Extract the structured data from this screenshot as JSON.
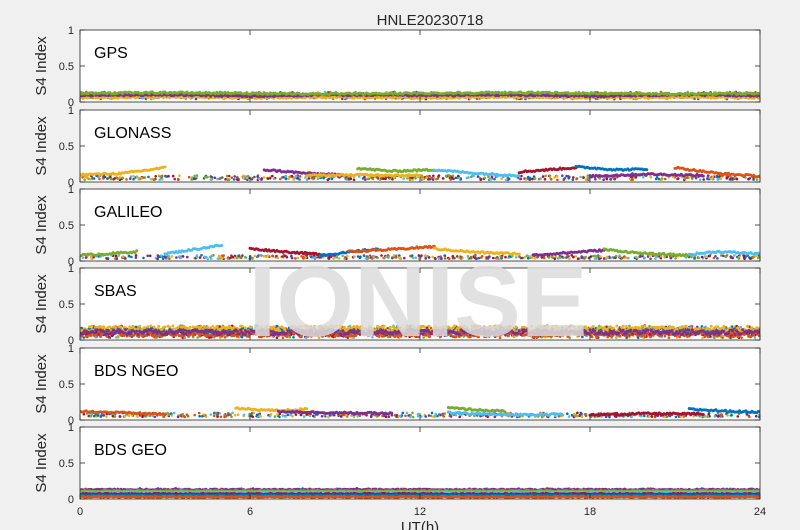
{
  "figure": {
    "title": "HNLE20230718",
    "xlabel": "UT(h)",
    "ylabel": "S4 Index",
    "watermark": "IONISE"
  },
  "colors": {
    "background": "#f0f0f0",
    "axes_bg": "#ffffff",
    "axis": "#262626",
    "watermark": "#dcdcdc",
    "series": [
      "#0072bd",
      "#d95319",
      "#edb120",
      "#7e2f8e",
      "#77ac30",
      "#4dbeee",
      "#a2142f"
    ]
  },
  "chart_data": {
    "type": "scatter",
    "title": "HNLE20230718",
    "xlabel": "UT(h)",
    "ylabel": "S4 Index",
    "xlim": [
      0,
      24
    ],
    "xticks": [
      0,
      6,
      12,
      18,
      24
    ],
    "ylim": [
      0,
      1
    ],
    "yticks": [
      0,
      0.5,
      1
    ],
    "ytick_labels": [
      "0",
      "0.5",
      "1"
    ],
    "grid": false,
    "panels": [
      {
        "label": "GPS",
        "style": "continuous",
        "level": [
          0.04,
          0.14
        ],
        "series": [
          {
            "x": [
              0,
              3,
              6,
              9,
              12,
              15,
              18,
              21,
              24
            ],
            "y": [
              0.07,
              0.08,
              0.07,
              0.08,
              0.07,
              0.08,
              0.07,
              0.08,
              0.07
            ]
          },
          {
            "x": [
              0,
              3,
              6,
              9,
              12,
              15,
              18,
              21,
              24
            ],
            "y": [
              0.1,
              0.09,
              0.11,
              0.09,
              0.1,
              0.09,
              0.11,
              0.09,
              0.1
            ]
          },
          {
            "x": [
              0,
              3,
              6,
              9,
              12,
              15,
              18,
              21,
              24
            ],
            "y": [
              0.06,
              0.07,
              0.06,
              0.07,
              0.06,
              0.07,
              0.06,
              0.07,
              0.06
            ]
          },
          {
            "x": [
              0,
              3,
              6,
              9,
              12,
              15,
              18,
              21,
              24
            ],
            "y": [
              0.09,
              0.1,
              0.08,
              0.1,
              0.09,
              0.1,
              0.08,
              0.1,
              0.09
            ]
          },
          {
            "x": [
              0,
              3,
              6,
              9,
              12,
              15,
              18,
              21,
              24
            ],
            "y": [
              0.12,
              0.13,
              0.12,
              0.11,
              0.12,
              0.13,
              0.12,
              0.11,
              0.12
            ]
          }
        ]
      },
      {
        "label": "GLONASS",
        "style": "arcs",
        "level": [
          0.03,
          0.09
        ],
        "series": [
          {
            "x": [
              0,
              1.5,
              3
            ],
            "y": [
              0.1,
              0.12,
              0.2
            ]
          },
          {
            "x": [
              6.5,
              8,
              9.5
            ],
            "y": [
              0.17,
              0.12,
              0.09
            ]
          },
          {
            "x": [
              9.8,
              11,
              12.5
            ],
            "y": [
              0.19,
              0.15,
              0.17
            ]
          },
          {
            "x": [
              12.5,
              14,
              15.5
            ],
            "y": [
              0.17,
              0.12,
              0.09
            ]
          },
          {
            "x": [
              15.5,
              16.5,
              17.5
            ],
            "y": [
              0.14,
              0.17,
              0.2
            ]
          },
          {
            "x": [
              17.5,
              19,
              20
            ],
            "y": [
              0.21,
              0.17,
              0.18
            ]
          },
          {
            "x": [
              21,
              22.5,
              24
            ],
            "y": [
              0.2,
              0.12,
              0.08
            ]
          },
          {
            "x": [
              8,
              10,
              12
            ],
            "y": [
              0.09,
              0.1,
              0.09
            ]
          },
          {
            "x": [
              18,
              20,
              22
            ],
            "y": [
              0.08,
              0.11,
              0.09
            ]
          }
        ]
      },
      {
        "label": "GALILEO",
        "style": "arcs",
        "level": [
          0.03,
          0.08
        ],
        "series": [
          {
            "x": [
              0,
              1,
              2
            ],
            "y": [
              0.08,
              0.1,
              0.13
            ]
          },
          {
            "x": [
              3,
              4,
              5
            ],
            "y": [
              0.1,
              0.16,
              0.22
            ]
          },
          {
            "x": [
              6,
              7.5,
              9
            ],
            "y": [
              0.17,
              0.12,
              0.08
            ]
          },
          {
            "x": [
              8.5,
              9.5,
              10.5
            ],
            "y": [
              0.08,
              0.12,
              0.17
            ]
          },
          {
            "x": [
              9.5,
              11,
              12.5
            ],
            "y": [
              0.13,
              0.16,
              0.2
            ]
          },
          {
            "x": [
              12.5,
              14,
              15.5
            ],
            "y": [
              0.17,
              0.12,
              0.1
            ]
          },
          {
            "x": [
              16,
              17,
              18.5
            ],
            "y": [
              0.08,
              0.11,
              0.15
            ]
          },
          {
            "x": [
              18.5,
              20,
              21.5
            ],
            "y": [
              0.16,
              0.1,
              0.08
            ]
          },
          {
            "x": [
              21.5,
              22.5,
              24
            ],
            "y": [
              0.09,
              0.13,
              0.1
            ]
          }
        ]
      },
      {
        "label": "SBAS",
        "style": "noisy",
        "level": [
          0.03,
          0.2
        ],
        "series": [
          {
            "x": [
              0,
              24
            ],
            "y": [
              0.1,
              0.1
            ]
          },
          {
            "x": [
              0,
              24
            ],
            "y": [
              0.13,
              0.13
            ]
          },
          {
            "x": [
              0,
              24
            ],
            "y": [
              0.08,
              0.08
            ]
          },
          {
            "x": [
              0,
              24
            ],
            "y": [
              0.16,
              0.16
            ]
          },
          {
            "x": [
              0,
              24
            ],
            "y": [
              0.11,
              0.11
            ]
          }
        ]
      },
      {
        "label": "BDS NGEO",
        "style": "arcs",
        "level": [
          0.04,
          0.1
        ],
        "series": [
          {
            "x": [
              0,
              1.5,
              3
            ],
            "y": [
              0.12,
              0.1,
              0.08
            ]
          },
          {
            "x": [
              5.5,
              7,
              8
            ],
            "y": [
              0.16,
              0.13,
              0.15
            ]
          },
          {
            "x": [
              7,
              9,
              11
            ],
            "y": [
              0.12,
              0.1,
              0.09
            ]
          },
          {
            "x": [
              13,
              14,
              15
            ],
            "y": [
              0.17,
              0.14,
              0.12
            ]
          },
          {
            "x": [
              13,
              15,
              17
            ],
            "y": [
              0.1,
              0.07,
              0.08
            ]
          },
          {
            "x": [
              18,
              20,
              22
            ],
            "y": [
              0.07,
              0.09,
              0.08
            ]
          },
          {
            "x": [
              21.5,
              23,
              24
            ],
            "y": [
              0.15,
              0.12,
              0.11
            ]
          }
        ]
      },
      {
        "label": "BDS GEO",
        "style": "flat",
        "level": [
          0.02,
          0.15
        ],
        "series": [
          {
            "x": [
              0,
              24
            ],
            "y": [
              0.13,
              0.13
            ]
          },
          {
            "x": [
              0,
              24
            ],
            "y": [
              0.11,
              0.11
            ]
          },
          {
            "x": [
              0,
              24
            ],
            "y": [
              0.09,
              0.09
            ]
          },
          {
            "x": [
              0,
              24
            ],
            "y": [
              0.07,
              0.07
            ]
          },
          {
            "x": [
              0,
              24
            ],
            "y": [
              0.05,
              0.05
            ]
          },
          {
            "x": [
              0,
              24
            ],
            "y": [
              0.03,
              0.03
            ]
          }
        ]
      }
    ]
  }
}
